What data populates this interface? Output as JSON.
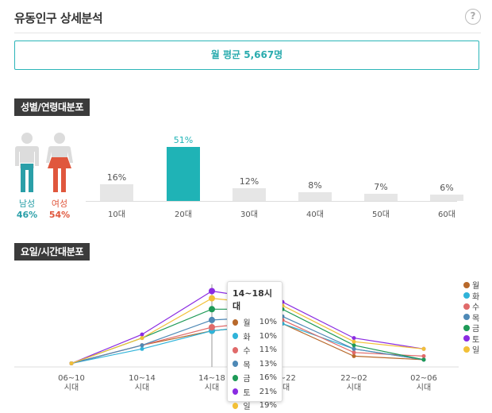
{
  "header": {
    "title": "유동인구 상세분석",
    "help_label": "?"
  },
  "summary": {
    "text": "월 평균 5,667명"
  },
  "gender_section": {
    "tag": "성별/연령대분포",
    "male": {
      "label": "남성",
      "pct": "46%",
      "color": "#2a9fa8"
    },
    "female": {
      "label": "여성",
      "pct": "54%",
      "color": "#e0573d"
    }
  },
  "time_section": {
    "tag": "요일/시간대분포"
  },
  "chart_data": [
    {
      "type": "bar",
      "categories": [
        "10대",
        "20대",
        "30대",
        "40대",
        "50대",
        "60대"
      ],
      "values": [
        16,
        51,
        12,
        8,
        7,
        6
      ],
      "value_labels": [
        "16%",
        "51%",
        "12%",
        "8%",
        "7%",
        "6%"
      ],
      "highlight_index": 1,
      "highlight_color": "#1fb3b6",
      "bar_color": "#e6e6e6",
      "ylim": [
        0,
        55
      ]
    },
    {
      "type": "line",
      "categories": [
        "06~10 시대",
        "10~14 시대",
        "14~18 시대",
        "18~22 시대",
        "22~02 시대",
        "02~06 시대"
      ],
      "category_lines": [
        [
          "06~10",
          "시대"
        ],
        [
          "10~14",
          "시대"
        ],
        [
          "14~18",
          "시대"
        ],
        [
          "18~22",
          "시대"
        ],
        [
          "22~02",
          "시대"
        ],
        [
          "02~06",
          "시대"
        ]
      ],
      "ylim": [
        0,
        22
      ],
      "series": [
        {
          "name": "월",
          "color": "#b8692b",
          "values": [
            1,
            6,
            10,
            12,
            3,
            2
          ]
        },
        {
          "name": "화",
          "color": "#2fb3d9",
          "values": [
            1,
            5,
            10,
            12,
            5,
            2
          ]
        },
        {
          "name": "수",
          "color": "#e06a6a",
          "values": [
            1,
            6,
            11,
            13,
            4,
            3
          ]
        },
        {
          "name": "목",
          "color": "#4e89b6",
          "values": [
            1,
            6,
            13,
            14,
            5,
            2
          ]
        },
        {
          "name": "금",
          "color": "#1e9a57",
          "values": [
            1,
            8,
            16,
            16,
            6,
            2
          ]
        },
        {
          "name": "토",
          "color": "#8a2be2",
          "values": [
            1,
            9,
            21,
            18,
            8,
            5
          ]
        },
        {
          "name": "일",
          "color": "#f2c037",
          "values": [
            1,
            8,
            19,
            17,
            7,
            5
          ]
        }
      ],
      "tooltip": {
        "title": "14~18시대",
        "rows": [
          {
            "day": "월",
            "value": "10%"
          },
          {
            "day": "화",
            "value": "10%"
          },
          {
            "day": "수",
            "value": "11%"
          },
          {
            "day": "목",
            "value": "13%"
          },
          {
            "day": "금",
            "value": "16%"
          },
          {
            "day": "토",
            "value": "21%"
          },
          {
            "day": "일",
            "value": "19%"
          }
        ]
      }
    }
  ]
}
